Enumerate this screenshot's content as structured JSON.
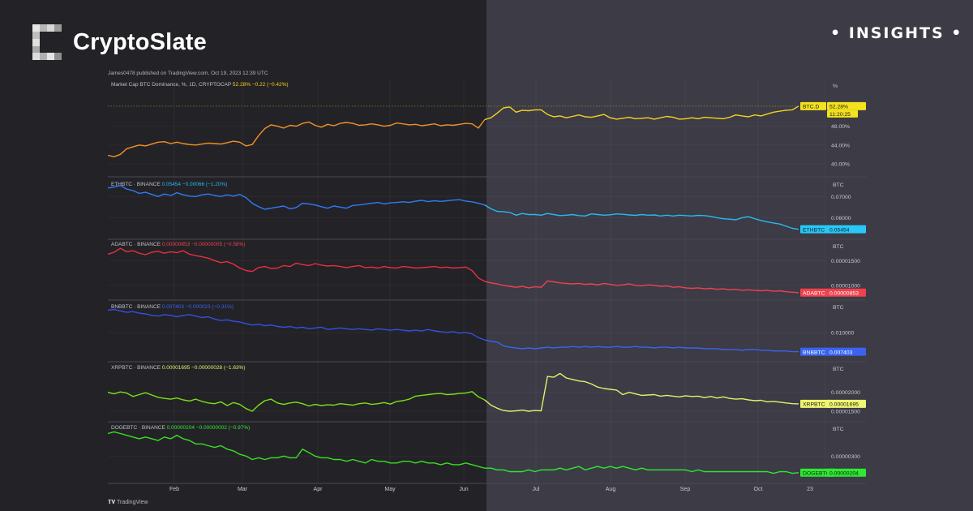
{
  "brand": {
    "name": "CryptoSlate",
    "tag": "INSIGHTS",
    "dot": "•"
  },
  "header": {
    "publisher": "James0478 published on TradingView.com, Oct 19, 2023 12:39 UTC",
    "tradingview": "TradingView"
  },
  "chart_data": {
    "type": "line",
    "x_labels": [
      "Feb",
      "Mar",
      "Apr",
      "May",
      "Jun",
      "Jul",
      "Aug",
      "Sep",
      "Oct",
      "23"
    ],
    "panels": [
      {
        "name": "BTC.D",
        "header": "Market Cap BTC Dominance, %, 1D, CRYPTOCAP",
        "values_text": "52.28%  −0.22 (−0.42%)",
        "unit": "%",
        "last_label": "BTC.D",
        "last_value": "52.28%",
        "countdown": "11:20:25",
        "ticks": [
          {
            "v": 48,
            "label": "48.00%"
          },
          {
            "v": 44,
            "label": "44.00%"
          },
          {
            "v": 40,
            "label": "40.00%"
          }
        ],
        "ylim": [
          38.6,
          54.5
        ],
        "color_left": "#f29225",
        "color_right": "#f3d21d",
        "badge_bg": "#f3e21d",
        "badge_fg": "#1a1a1a",
        "y": [
          41.8,
          41.5,
          42.0,
          43.2,
          43.6,
          44.0,
          43.8,
          44.2,
          44.6,
          44.7,
          44.3,
          44.6,
          44.3,
          44.1,
          44.0,
          44.2,
          44.4,
          44.3,
          44.2,
          44.5,
          44.8,
          44.6,
          43.8,
          44.1,
          46.0,
          47.5,
          48.3,
          48.0,
          47.6,
          48.2,
          48.0,
          48.6,
          48.9,
          48.2,
          47.8,
          48.4,
          48.1,
          48.6,
          48.8,
          48.6,
          48.2,
          48.3,
          48.5,
          48.3,
          48.0,
          48.2,
          48.7,
          48.5,
          48.3,
          48.4,
          48.1,
          48.3,
          48.5,
          48.1,
          48.3,
          48.2,
          48.4,
          48.6,
          48.5,
          47.6,
          49.4,
          49.8,
          50.8,
          51.9,
          52.1,
          51.0,
          51.4,
          51.3,
          51.5,
          51.5,
          50.5,
          50.0,
          50.2,
          49.8,
          50.1,
          50.4,
          50.0,
          49.9,
          50.2,
          50.5,
          49.8,
          49.5,
          49.7,
          49.9,
          49.6,
          49.7,
          49.8,
          49.5,
          49.8,
          50.1,
          49.9,
          49.5,
          49.6,
          49.8,
          49.6,
          49.9,
          49.8,
          49.7,
          49.6,
          49.9,
          50.4,
          50.2,
          50.0,
          50.4,
          50.2,
          50.6,
          51.0,
          51.2,
          51.4,
          51.5,
          52.28
        ]
      },
      {
        "name": "ETHBTC",
        "header": "ETHBTC · BINANCE",
        "values_text": "0.05454  −0.00066 (−1.20%)",
        "unit": "BTC",
        "last_label": "ETHBTC",
        "last_value": "0.05454",
        "ticks": [
          {
            "v": 0.07,
            "label": "0.07000"
          },
          {
            "v": 0.06,
            "label": "0.06000"
          }
        ],
        "ylim": [
          0.0525,
          0.077
        ],
        "color_left": "#2f7cf2",
        "color_right": "#28b9f0",
        "badge_bg": "#28c8f8",
        "badge_fg": "#10202a",
        "y": [
          0.074,
          0.0745,
          0.0752,
          0.0735,
          0.0728,
          0.0715,
          0.072,
          0.071,
          0.07,
          0.0712,
          0.0705,
          0.0718,
          0.0708,
          0.0702,
          0.07,
          0.0708,
          0.0712,
          0.0705,
          0.07,
          0.0708,
          0.0702,
          0.071,
          0.0695,
          0.0668,
          0.0652,
          0.064,
          0.0645,
          0.065,
          0.0655,
          0.0642,
          0.0648,
          0.0668,
          0.0665,
          0.066,
          0.0652,
          0.0645,
          0.0655,
          0.065,
          0.0645,
          0.0658,
          0.066,
          0.0664,
          0.0668,
          0.0672,
          0.0665,
          0.067,
          0.0672,
          0.0675,
          0.0672,
          0.0678,
          0.0682,
          0.0676,
          0.068,
          0.0677,
          0.068,
          0.0683,
          0.0685,
          0.0678,
          0.0675,
          0.0668,
          0.066,
          0.0642,
          0.063,
          0.0628,
          0.0625,
          0.0612,
          0.062,
          0.0615,
          0.0615,
          0.0612,
          0.062,
          0.0615,
          0.061,
          0.0612,
          0.0615,
          0.061,
          0.0608,
          0.0618,
          0.0615,
          0.0612,
          0.0614,
          0.0618,
          0.0616,
          0.0613,
          0.0611,
          0.0615,
          0.0612,
          0.0613,
          0.0608,
          0.0612,
          0.0608,
          0.0612,
          0.061,
          0.0608,
          0.0611,
          0.061,
          0.0606,
          0.06,
          0.0595,
          0.0593,
          0.059,
          0.06,
          0.0605,
          0.0595,
          0.0587,
          0.058,
          0.0575,
          0.057,
          0.056,
          0.055,
          0.05454
        ]
      },
      {
        "name": "ADABTC",
        "header": "ADABTC · BINANCE",
        "values_text": "0.00000853  −0.00000005 (−0.58%)",
        "unit": "BTC",
        "last_label": "ADABTC",
        "last_value": "0.00000853",
        "ticks": [
          {
            "v": 1.5e-05,
            "label": "0.00001500"
          },
          {
            "v": 1e-05,
            "label": "0.00001000"
          }
        ],
        "ylim": [
          8e-06,
          1.85e-05
        ],
        "color_left": "#e53040",
        "color_right": "#f0414e",
        "badge_bg": "#f0414e",
        "badge_fg": "#ffffff",
        "y": [
          1.63e-05,
          1.67e-05,
          1.75e-05,
          1.68e-05,
          1.7e-05,
          1.65e-05,
          1.62e-05,
          1.67e-05,
          1.69e-05,
          1.65e-05,
          1.68e-05,
          1.66e-05,
          1.7e-05,
          1.63e-05,
          1.6e-05,
          1.58e-05,
          1.55e-05,
          1.5e-05,
          1.46e-05,
          1.48e-05,
          1.43e-05,
          1.35e-05,
          1.3e-05,
          1.28e-05,
          1.36e-05,
          1.38e-05,
          1.34e-05,
          1.35e-05,
          1.4e-05,
          1.38e-05,
          1.45e-05,
          1.42e-05,
          1.4e-05,
          1.44e-05,
          1.41e-05,
          1.39e-05,
          1.4e-05,
          1.38e-05,
          1.36e-05,
          1.38e-05,
          1.4e-05,
          1.36e-05,
          1.37e-05,
          1.35e-05,
          1.38e-05,
          1.36e-05,
          1.35e-05,
          1.38e-05,
          1.37e-05,
          1.35e-05,
          1.36e-05,
          1.37e-05,
          1.38e-05,
          1.36e-05,
          1.37e-05,
          1.35e-05,
          1.36e-05,
          1.37e-05,
          1.3e-05,
          1.15e-05,
          1.08e-05,
          1.05e-05,
          1.03e-05,
          1e-05,
          9.8e-06,
          9.6e-06,
          9.8e-06,
          9.5e-06,
          9.7e-06,
          9.6e-06,
          1.09e-05,
          1.07e-05,
          1.05e-05,
          1.04e-05,
          1.03e-05,
          1.04e-05,
          1.02e-05,
          1.03e-05,
          1.01e-05,
          1.04e-05,
          1.02e-05,
          1e-05,
          1.01e-05,
          1.03e-05,
          1e-05,
          9.9e-06,
          1.01e-05,
          1e-05,
          9.8e-06,
          9.9e-06,
          9.6e-06,
          9.7e-06,
          9.5e-06,
          9.4e-06,
          9.5e-06,
          9.3e-06,
          9.4e-06,
          9.2e-06,
          9.3e-06,
          9.1e-06,
          9.2e-06,
          9e-06,
          9.1e-06,
          9e-06,
          8.9e-06,
          9e-06,
          8.8e-06,
          8.9e-06,
          8.7e-06,
          8.6e-06,
          8.53e-06
        ]
      },
      {
        "name": "BNBBTC",
        "header": "BNBBTC · BINANCE",
        "values_text": "0.007403  −0.000023 (−0.31%)",
        "unit": "BTC",
        "last_label": "BNBBTC",
        "last_value": "0.007403",
        "ticks": [
          {
            "v": 0.01,
            "label": "0.010000"
          }
        ],
        "ylim": [
          0.0067,
          0.0137
        ],
        "color_left": "#3550e0",
        "color_right": "#3a64f0",
        "badge_bg": "#3a64f0",
        "badge_fg": "#ffffff",
        "y": [
          0.013,
          0.0131,
          0.0129,
          0.0127,
          0.0128,
          0.0126,
          0.0125,
          0.0123,
          0.0122,
          0.0124,
          0.0123,
          0.0121,
          0.0123,
          0.0124,
          0.0122,
          0.012,
          0.0121,
          0.0118,
          0.0116,
          0.0117,
          0.0115,
          0.0114,
          0.0112,
          0.011,
          0.0111,
          0.0109,
          0.011,
          0.0108,
          0.0107,
          0.0108,
          0.0106,
          0.0107,
          0.0105,
          0.0106,
          0.0107,
          0.0104,
          0.0105,
          0.0106,
          0.0105,
          0.0104,
          0.0105,
          0.0104,
          0.0103,
          0.0105,
          0.0104,
          0.0103,
          0.0104,
          0.0103,
          0.0102,
          0.0103,
          0.0102,
          0.0104,
          0.0102,
          0.0101,
          0.01,
          0.0101,
          0.0099,
          0.01,
          0.0098,
          0.0093,
          0.009,
          0.0088,
          0.0087,
          0.0082,
          0.008,
          0.0079,
          0.0078,
          0.0079,
          0.0078,
          0.0079,
          0.008,
          0.0079,
          0.008,
          0.008,
          0.0081,
          0.008,
          0.0081,
          0.008,
          0.0081,
          0.008,
          0.008,
          0.0081,
          0.008,
          0.008,
          0.0081,
          0.008,
          0.008,
          0.0079,
          0.008,
          0.008,
          0.0079,
          0.008,
          0.0079,
          0.0079,
          0.0079,
          0.0078,
          0.0078,
          0.0078,
          0.0077,
          0.0077,
          0.0077,
          0.0076,
          0.0077,
          0.0077,
          0.0076,
          0.0076,
          0.0075,
          0.0075,
          0.0075,
          0.0074,
          0.007403
        ]
      },
      {
        "name": "XRPBTC",
        "header": "XRPBTC · BINANCE",
        "values_text": "0.00001695  −0.00000028 (−1.63%)",
        "unit": "BTC",
        "last_label": "XRPBTC",
        "last_value": "0.00001695",
        "ticks": [
          {
            "v": 2e-05,
            "label": "0.00002000"
          },
          {
            "v": 1.5e-05,
            "label": "0.00001500"
          }
        ],
        "ylim": [
          1.35e-05,
          2.68e-05
        ],
        "color_left": "#7ce014",
        "color_right": "#e4f06a",
        "badge_bg": "#eef571",
        "badge_fg": "#1a1a1a",
        "y": [
          2e-05,
          1.96e-05,
          2.01e-05,
          1.98e-05,
          1.89e-05,
          1.94e-05,
          1.99e-05,
          1.93e-05,
          1.87e-05,
          1.84e-05,
          1.82e-05,
          1.85e-05,
          1.8e-05,
          1.77e-05,
          1.82e-05,
          1.76e-05,
          1.72e-05,
          1.7e-05,
          1.75e-05,
          1.65e-05,
          1.73e-05,
          1.68e-05,
          1.57e-05,
          1.5e-05,
          1.66e-05,
          1.78e-05,
          1.82e-05,
          1.72e-05,
          1.68e-05,
          1.72e-05,
          1.74e-05,
          1.7e-05,
          1.64e-05,
          1.68e-05,
          1.65e-05,
          1.67e-05,
          1.66e-05,
          1.7e-05,
          1.68e-05,
          1.66e-05,
          1.7e-05,
          1.72e-05,
          1.68e-05,
          1.7e-05,
          1.73e-05,
          1.69e-05,
          1.76e-05,
          1.78e-05,
          1.82e-05,
          1.9e-05,
          1.92e-05,
          1.94e-05,
          1.96e-05,
          1.97e-05,
          1.94e-05,
          1.95e-05,
          1.97e-05,
          1.98e-05,
          2.02e-05,
          1.88e-05,
          1.8e-05,
          1.66e-05,
          1.58e-05,
          1.52e-05,
          1.5e-05,
          1.51e-05,
          1.53e-05,
          1.5e-05,
          1.52e-05,
          1.51e-05,
          2.42e-05,
          2.4e-05,
          2.5e-05,
          2.38e-05,
          2.34e-05,
          2.3e-05,
          2.28e-05,
          2.22e-05,
          2.14e-05,
          2.1e-05,
          2.08e-05,
          2.06e-05,
          1.94e-05,
          2e-05,
          1.96e-05,
          1.92e-05,
          1.93e-05,
          1.94e-05,
          1.9e-05,
          1.92e-05,
          1.9e-05,
          1.88e-05,
          1.91e-05,
          1.89e-05,
          1.9e-05,
          1.86e-05,
          1.89e-05,
          1.85e-05,
          1.88e-05,
          1.84e-05,
          1.82e-05,
          1.83e-05,
          1.8e-05,
          1.78e-05,
          1.79e-05,
          1.75e-05,
          1.76e-05,
          1.74e-05,
          1.72e-05,
          1.7e-05,
          1.695e-05
        ]
      },
      {
        "name": "DOGEBTC",
        "header": "DOGEBTC · BINANCE",
        "values_text": "0.00000204  −0.00000002 (−0.97%)",
        "unit": "BTC",
        "last_label": "DOGEBTC",
        "last_value": "0.00000204",
        "ticks": [
          {
            "v": 3e-06,
            "label": "0.00000300"
          }
        ],
        "ylim": [
          1.7e-06,
          4.7e-06
        ],
        "color_left": "#38e020",
        "color_right": "#2ee832",
        "badge_bg": "#2ee832",
        "badge_fg": "#10201a",
        "y": [
          4.3e-06,
          4.4e-06,
          4.3e-06,
          4.2e-06,
          4.1e-06,
          4e-06,
          4.1e-06,
          4e-06,
          3.9e-06,
          4.1e-06,
          4e-06,
          4.2e-06,
          4e-06,
          3.9e-06,
          3.7e-06,
          3.7e-06,
          3.6e-06,
          3.5e-06,
          3.6e-06,
          3.4e-06,
          3.3e-06,
          3.1e-06,
          3e-06,
          2.8e-06,
          2.9e-06,
          2.8e-06,
          2.9e-06,
          2.9e-06,
          3e-06,
          2.9e-06,
          2.9e-06,
          3.4e-06,
          3.2e-06,
          3e-06,
          2.9e-06,
          2.9e-06,
          2.8e-06,
          2.8e-06,
          2.7e-06,
          2.8e-06,
          2.7e-06,
          2.6e-06,
          2.8e-06,
          2.7e-06,
          2.7e-06,
          2.6e-06,
          2.6e-06,
          2.7e-06,
          2.7e-06,
          2.6e-06,
          2.7e-06,
          2.6e-06,
          2.6e-06,
          2.5e-06,
          2.6e-06,
          2.5e-06,
          2.5e-06,
          2.6e-06,
          2.5e-06,
          2.4e-06,
          2.3e-06,
          2.3e-06,
          2.2e-06,
          2.2e-06,
          2.1e-06,
          2.1e-06,
          2.1e-06,
          2.2e-06,
          2.1e-06,
          2.2e-06,
          2.2e-06,
          2.2e-06,
          2.3e-06,
          2.2e-06,
          2.3e-06,
          2.4e-06,
          2.2e-06,
          2.3e-06,
          2.4e-06,
          2.3e-06,
          2.4e-06,
          2.3e-06,
          2.4e-06,
          2.3e-06,
          2.2e-06,
          2.3e-06,
          2.2e-06,
          2.2e-06,
          2.2e-06,
          2.2e-06,
          2.2e-06,
          2.2e-06,
          2.2e-06,
          2.1e-06,
          2.2e-06,
          2.1e-06,
          2.1e-06,
          2.1e-06,
          2.1e-06,
          2.1e-06,
          2.1e-06,
          2.1e-06,
          2.1e-06,
          2.1e-06,
          2.1e-06,
          2.1e-06,
          2e-06,
          2.1e-06,
          2.1e-06,
          2e-06,
          2.04e-06
        ]
      }
    ]
  }
}
